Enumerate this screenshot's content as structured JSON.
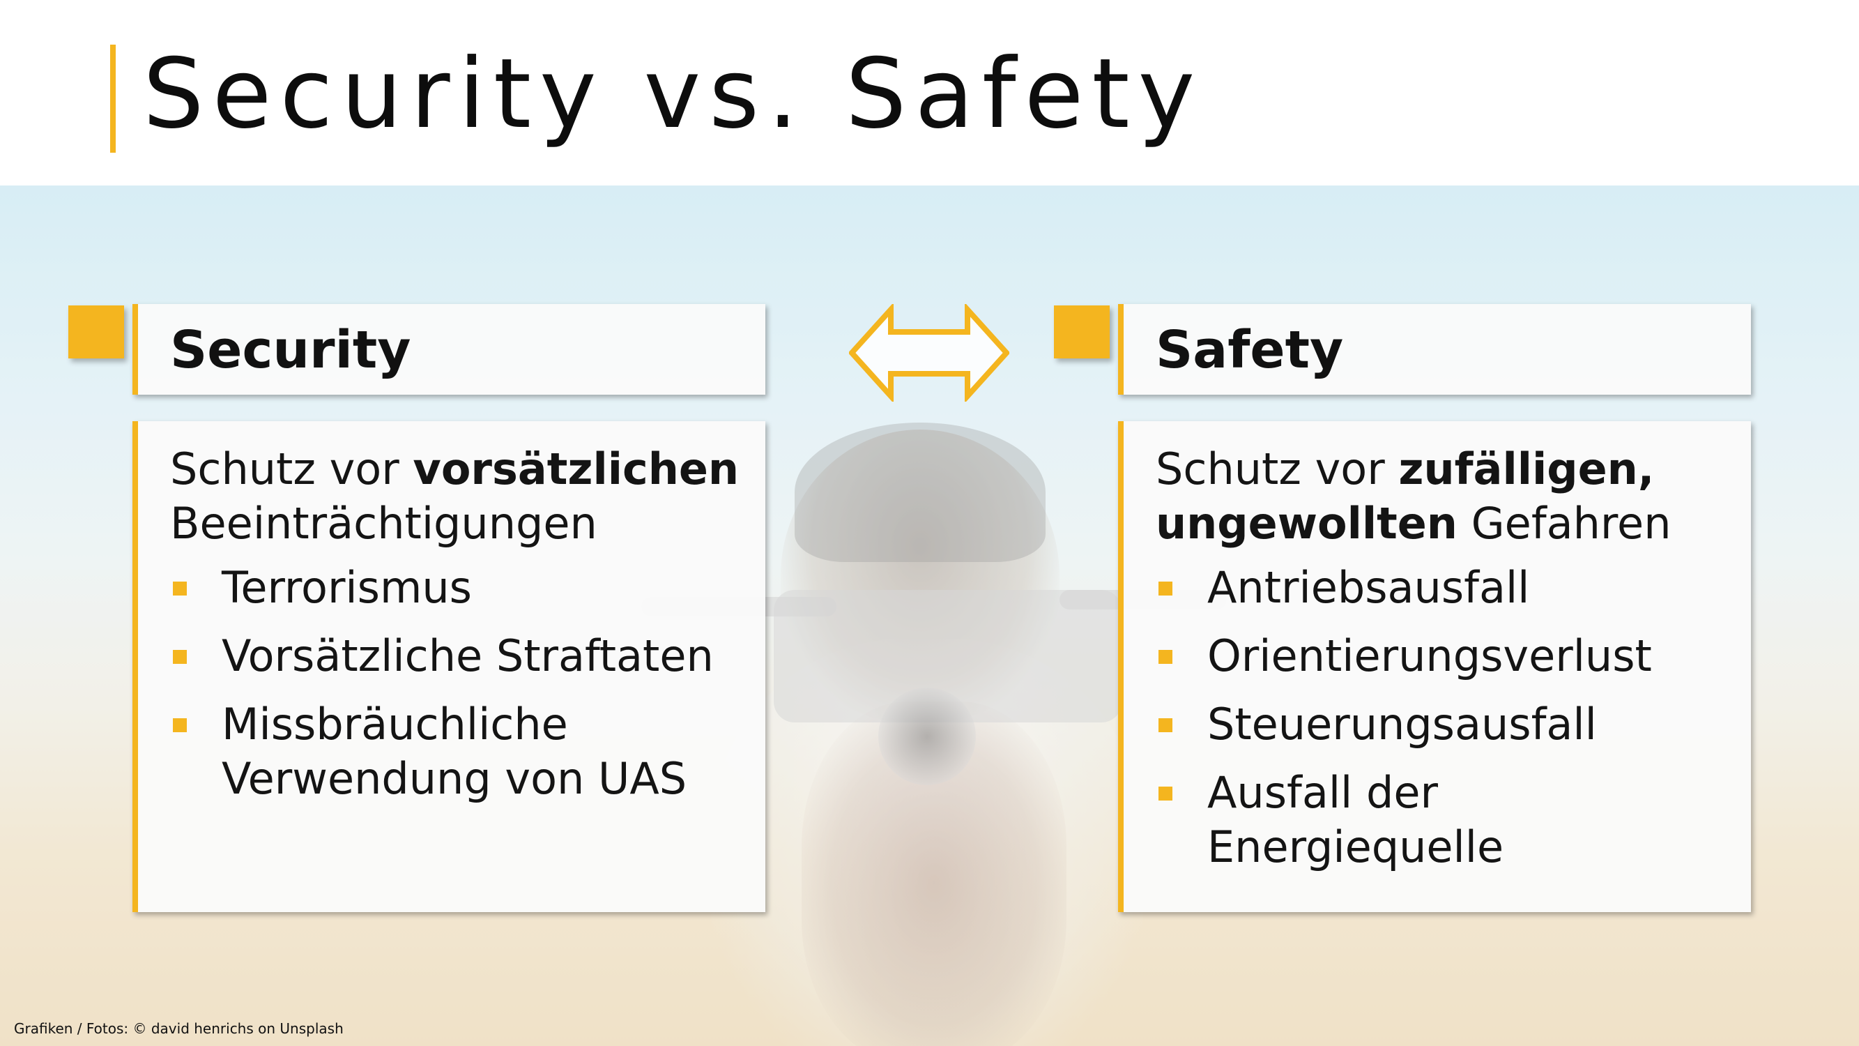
{
  "header": {
    "title": "Security vs. Safety"
  },
  "colors": {
    "accent": "#f4b51f",
    "text": "#141414",
    "panel": "#fafafa"
  },
  "icons": {
    "marker": "square-marker-icon",
    "bullet": "square-bullet-icon",
    "swap": "double-arrow-icon"
  },
  "security": {
    "title": "Security",
    "intro_prefix": "Schutz vor ",
    "intro_bold": "vorsätzlichen",
    "intro_suffix": " Beeinträchtigungen",
    "bullets": [
      "Terrorismus",
      "Vorsätzliche Straftaten",
      "Missbräuchliche Verwendung von UAS"
    ]
  },
  "safety": {
    "title": "Safety",
    "intro_prefix": "Schutz vor ",
    "intro_bold": "zufälligen, ungewollten",
    "intro_suffix": " Gefahren",
    "bullets": [
      "Antriebsausfall",
      "Orientierungsverlust",
      "Steuerungsausfall",
      "Ausfall der Energiequelle"
    ]
  },
  "footer": {
    "credit": "Grafiken / Fotos: © david henrichs on Unsplash"
  }
}
